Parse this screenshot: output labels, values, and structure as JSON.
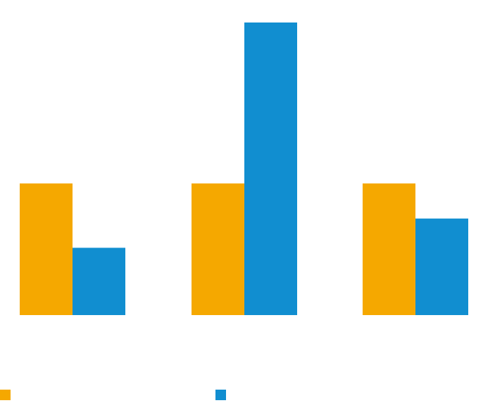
{
  "chart_data": {
    "type": "bar",
    "categories": [
      "",
      "",
      ""
    ],
    "series": [
      {
        "color": "#F5A800",
        "values": [
          45,
          45,
          45
        ]
      },
      {
        "color": "#118ED0",
        "values": [
          23,
          100,
          33
        ]
      }
    ],
    "ylim": [
      0,
      100
    ],
    "grid": false,
    "legend_position": "bottom"
  }
}
